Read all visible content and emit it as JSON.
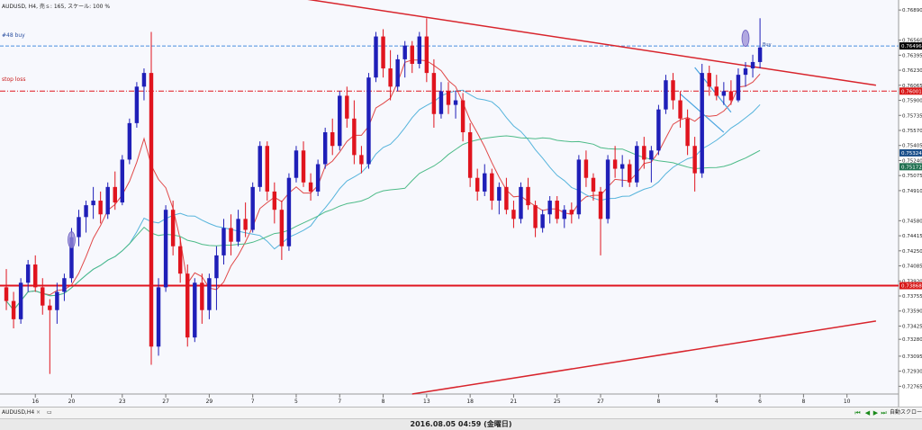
{
  "window": {
    "title": "AUDUSD, H4,  売ｓ: 165, スケール: 100 %",
    "status": "2016.08.05 04:59 (金曜日)",
    "tab_label": "AUDUSD,H4",
    "tab_close": "×",
    "right_tab": "自動スクロール"
  },
  "price_labels": {
    "buy_order": "#48 buy",
    "stop_loss": "stop loss",
    "buy_arrow": "Buy"
  },
  "colors": {
    "background": "#f7f8fd",
    "bull_candle": "#1f1fb8",
    "bear_candle": "#e0141e",
    "trendline": "#d8242c",
    "buy_line": "#4a8fe0",
    "stop_line": "#e0141e",
    "ma_fast": "#e04848",
    "ma_medium": "#56b4dc",
    "ma_slow": "#4dbb88",
    "flag_line": "#4aa4e0",
    "marker_fill": "#9a8ed6"
  },
  "chart_data": {
    "type": "candlestick",
    "symbol": "AUDUSD",
    "timeframe": "H4",
    "y_axis": {
      "ylim": [
        0.7268,
        0.77
      ],
      "ticks": [
        "0.76890",
        "0.76560",
        "0.76395",
        "0.76230",
        "0.76065",
        "0.75900",
        "0.75735",
        "0.75570",
        "0.75405",
        "0.75240",
        "0.75075",
        "0.74910",
        "0.74580",
        "0.74415",
        "0.74250",
        "0.74085",
        "0.73920",
        "0.73755",
        "0.73590",
        "0.73425",
        "0.73280",
        "0.73095",
        "0.72930",
        "0.72765"
      ],
      "tick_values": [
        0.7689,
        0.7656,
        0.76395,
        0.7623,
        0.76065,
        0.759,
        0.75735,
        0.7557,
        0.75405,
        0.7524,
        0.75075,
        0.7491,
        0.7458,
        0.74415,
        0.7425,
        0.74085,
        0.7392,
        0.73755,
        0.7359,
        0.73425,
        0.7328,
        0.73095,
        0.7293,
        0.72765
      ],
      "highlight_labels": [
        {
          "text": "0.76496",
          "value": 0.76496,
          "color": "#000000"
        },
        {
          "text": "0.76001",
          "value": 0.76001,
          "color": "#d81818"
        },
        {
          "text": "0.73868",
          "value": 0.73868,
          "color": "#d81818"
        },
        {
          "text": "0.75324",
          "value": 0.75324,
          "color": "#1a4f8a"
        },
        {
          "text": "0.75172",
          "value": 0.75172,
          "color": "#207050"
        }
      ]
    },
    "x_axis": {
      "labels": [
        "16",
        "20",
        "23",
        "27",
        "29",
        "7",
        "5",
        "7",
        "8",
        "13",
        "18",
        "21",
        "25",
        "27",
        "8",
        "4",
        "6",
        "8",
        "10"
      ],
      "label_bars": [
        4,
        9,
        16,
        22,
        28,
        34,
        40,
        46,
        52,
        58,
        64,
        70,
        76,
        82,
        90,
        98,
        104,
        110,
        116
      ]
    },
    "horizontal_lines": [
      {
        "name": "buy_order",
        "value": 0.76496,
        "style": "dashed",
        "color": "#4a8fe0"
      },
      {
        "name": "stop_loss",
        "value": 0.76001,
        "style": "dashdot",
        "color": "#e0141e"
      },
      {
        "name": "support",
        "value": 0.73868,
        "style": "solid",
        "color": "#e0141e"
      }
    ],
    "trendlines": [
      {
        "from": {
          "bar": 38,
          "price": 0.7705
        },
        "to": {
          "bar": 120,
          "price": 0.76065
        }
      },
      {
        "from": {
          "bar": 56,
          "price": 0.7268
        },
        "to": {
          "bar": 120,
          "price": 0.7348
        }
      }
    ],
    "flag_lines": [
      {
        "from": {
          "bar": 95,
          "price": 0.7626
        },
        "to": {
          "bar": 100,
          "price": 0.7577
        }
      },
      {
        "from": {
          "bar": 93,
          "price": 0.7597
        },
        "to": {
          "bar": 99,
          "price": 0.7555
        }
      }
    ],
    "markers": [
      {
        "name": "entry-marker-left",
        "bar": 9,
        "price": 0.7437
      },
      {
        "name": "entry-marker-right",
        "bar": 102,
        "price": 0.7658
      }
    ],
    "candles": [
      {
        "o": 0.7385,
        "h": 0.7405,
        "l": 0.736,
        "c": 0.737
      },
      {
        "o": 0.737,
        "h": 0.738,
        "l": 0.734,
        "c": 0.735
      },
      {
        "o": 0.735,
        "h": 0.7395,
        "l": 0.7345,
        "c": 0.739
      },
      {
        "o": 0.739,
        "h": 0.7415,
        "l": 0.738,
        "c": 0.741
      },
      {
        "o": 0.741,
        "h": 0.742,
        "l": 0.738,
        "c": 0.7385
      },
      {
        "o": 0.7385,
        "h": 0.7395,
        "l": 0.7355,
        "c": 0.7365
      },
      {
        "o": 0.7365,
        "h": 0.7372,
        "l": 0.729,
        "c": 0.736
      },
      {
        "o": 0.736,
        "h": 0.739,
        "l": 0.7345,
        "c": 0.738
      },
      {
        "o": 0.738,
        "h": 0.74,
        "l": 0.737,
        "c": 0.7395
      },
      {
        "o": 0.7395,
        "h": 0.745,
        "l": 0.739,
        "c": 0.744
      },
      {
        "o": 0.744,
        "h": 0.747,
        "l": 0.743,
        "c": 0.7462
      },
      {
        "o": 0.7462,
        "h": 0.748,
        "l": 0.7445,
        "c": 0.7475
      },
      {
        "o": 0.7475,
        "h": 0.7495,
        "l": 0.746,
        "c": 0.748
      },
      {
        "o": 0.748,
        "h": 0.749,
        "l": 0.7455,
        "c": 0.7465
      },
      {
        "o": 0.7465,
        "h": 0.75,
        "l": 0.746,
        "c": 0.7495
      },
      {
        "o": 0.7495,
        "h": 0.7512,
        "l": 0.747,
        "c": 0.7478
      },
      {
        "o": 0.7478,
        "h": 0.753,
        "l": 0.7475,
        "c": 0.7525
      },
      {
        "o": 0.7525,
        "h": 0.757,
        "l": 0.752,
        "c": 0.7565
      },
      {
        "o": 0.7565,
        "h": 0.761,
        "l": 0.756,
        "c": 0.7605
      },
      {
        "o": 0.7605,
        "h": 0.7625,
        "l": 0.759,
        "c": 0.762
      },
      {
        "o": 0.762,
        "h": 0.7665,
        "l": 0.73,
        "c": 0.732
      },
      {
        "o": 0.732,
        "h": 0.7395,
        "l": 0.731,
        "c": 0.7385
      },
      {
        "o": 0.7385,
        "h": 0.7475,
        "l": 0.738,
        "c": 0.747
      },
      {
        "o": 0.747,
        "h": 0.748,
        "l": 0.742,
        "c": 0.743
      },
      {
        "o": 0.743,
        "h": 0.744,
        "l": 0.739,
        "c": 0.74
      },
      {
        "o": 0.74,
        "h": 0.741,
        "l": 0.732,
        "c": 0.733
      },
      {
        "o": 0.733,
        "h": 0.7395,
        "l": 0.7325,
        "c": 0.739
      },
      {
        "o": 0.739,
        "h": 0.74,
        "l": 0.7345,
        "c": 0.736
      },
      {
        "o": 0.736,
        "h": 0.74,
        "l": 0.735,
        "c": 0.7395
      },
      {
        "o": 0.7395,
        "h": 0.743,
        "l": 0.736,
        "c": 0.742
      },
      {
        "o": 0.742,
        "h": 0.746,
        "l": 0.741,
        "c": 0.745
      },
      {
        "o": 0.745,
        "h": 0.7465,
        "l": 0.742,
        "c": 0.7435
      },
      {
        "o": 0.7435,
        "h": 0.747,
        "l": 0.743,
        "c": 0.746
      },
      {
        "o": 0.746,
        "h": 0.7478,
        "l": 0.744,
        "c": 0.7448
      },
      {
        "o": 0.7448,
        "h": 0.75,
        "l": 0.7445,
        "c": 0.7495
      },
      {
        "o": 0.7495,
        "h": 0.7545,
        "l": 0.749,
        "c": 0.754
      },
      {
        "o": 0.754,
        "h": 0.7545,
        "l": 0.748,
        "c": 0.749
      },
      {
        "o": 0.749,
        "h": 0.75,
        "l": 0.7455,
        "c": 0.747
      },
      {
        "o": 0.747,
        "h": 0.748,
        "l": 0.7415,
        "c": 0.743
      },
      {
        "o": 0.743,
        "h": 0.751,
        "l": 0.7425,
        "c": 0.7505
      },
      {
        "o": 0.7505,
        "h": 0.754,
        "l": 0.75,
        "c": 0.7535
      },
      {
        "o": 0.7535,
        "h": 0.7545,
        "l": 0.7495,
        "c": 0.75
      },
      {
        "o": 0.75,
        "h": 0.751,
        "l": 0.748,
        "c": 0.749
      },
      {
        "o": 0.749,
        "h": 0.7525,
        "l": 0.7485,
        "c": 0.752
      },
      {
        "o": 0.752,
        "h": 0.756,
        "l": 0.7515,
        "c": 0.7555
      },
      {
        "o": 0.7555,
        "h": 0.757,
        "l": 0.753,
        "c": 0.754
      },
      {
        "o": 0.754,
        "h": 0.76,
        "l": 0.7535,
        "c": 0.7595
      },
      {
        "o": 0.7595,
        "h": 0.7605,
        "l": 0.756,
        "c": 0.757
      },
      {
        "o": 0.757,
        "h": 0.759,
        "l": 0.752,
        "c": 0.753
      },
      {
        "o": 0.753,
        "h": 0.754,
        "l": 0.751,
        "c": 0.752
      },
      {
        "o": 0.752,
        "h": 0.762,
        "l": 0.7515,
        "c": 0.7615
      },
      {
        "o": 0.7615,
        "h": 0.7665,
        "l": 0.761,
        "c": 0.766
      },
      {
        "o": 0.766,
        "h": 0.7668,
        "l": 0.7615,
        "c": 0.7625
      },
      {
        "o": 0.7625,
        "h": 0.7645,
        "l": 0.759,
        "c": 0.7605
      },
      {
        "o": 0.7605,
        "h": 0.764,
        "l": 0.76,
        "c": 0.7635
      },
      {
        "o": 0.7635,
        "h": 0.7655,
        "l": 0.7615,
        "c": 0.765
      },
      {
        "o": 0.765,
        "h": 0.7655,
        "l": 0.762,
        "c": 0.763
      },
      {
        "o": 0.763,
        "h": 0.7665,
        "l": 0.7625,
        "c": 0.766
      },
      {
        "o": 0.766,
        "h": 0.768,
        "l": 0.761,
        "c": 0.762
      },
      {
        "o": 0.762,
        "h": 0.7635,
        "l": 0.756,
        "c": 0.7575
      },
      {
        "o": 0.7575,
        "h": 0.761,
        "l": 0.757,
        "c": 0.76
      },
      {
        "o": 0.76,
        "h": 0.761,
        "l": 0.7575,
        "c": 0.7585
      },
      {
        "o": 0.7585,
        "h": 0.76,
        "l": 0.757,
        "c": 0.759
      },
      {
        "o": 0.759,
        "h": 0.7598,
        "l": 0.7545,
        "c": 0.7555
      },
      {
        "o": 0.7555,
        "h": 0.7565,
        "l": 0.7495,
        "c": 0.7505
      },
      {
        "o": 0.7505,
        "h": 0.7515,
        "l": 0.748,
        "c": 0.749
      },
      {
        "o": 0.749,
        "h": 0.752,
        "l": 0.7485,
        "c": 0.751
      },
      {
        "o": 0.751,
        "h": 0.7515,
        "l": 0.747,
        "c": 0.748
      },
      {
        "o": 0.748,
        "h": 0.75,
        "l": 0.7465,
        "c": 0.7495
      },
      {
        "o": 0.7495,
        "h": 0.7505,
        "l": 0.7465,
        "c": 0.747
      },
      {
        "o": 0.747,
        "h": 0.748,
        "l": 0.745,
        "c": 0.746
      },
      {
        "o": 0.746,
        "h": 0.75,
        "l": 0.7455,
        "c": 0.7495
      },
      {
        "o": 0.7495,
        "h": 0.7505,
        "l": 0.747,
        "c": 0.7475
      },
      {
        "o": 0.7475,
        "h": 0.748,
        "l": 0.744,
        "c": 0.745
      },
      {
        "o": 0.745,
        "h": 0.747,
        "l": 0.7445,
        "c": 0.7465
      },
      {
        "o": 0.7465,
        "h": 0.7485,
        "l": 0.7455,
        "c": 0.748
      },
      {
        "o": 0.748,
        "h": 0.7485,
        "l": 0.7455,
        "c": 0.746
      },
      {
        "o": 0.746,
        "h": 0.7475,
        "l": 0.745,
        "c": 0.747
      },
      {
        "o": 0.747,
        "h": 0.7478,
        "l": 0.7455,
        "c": 0.7465
      },
      {
        "o": 0.7465,
        "h": 0.753,
        "l": 0.746,
        "c": 0.7525
      },
      {
        "o": 0.7525,
        "h": 0.7535,
        "l": 0.7495,
        "c": 0.7505
      },
      {
        "o": 0.7505,
        "h": 0.751,
        "l": 0.748,
        "c": 0.749
      },
      {
        "o": 0.749,
        "h": 0.7495,
        "l": 0.742,
        "c": 0.746
      },
      {
        "o": 0.746,
        "h": 0.753,
        "l": 0.7455,
        "c": 0.7525
      },
      {
        "o": 0.7525,
        "h": 0.754,
        "l": 0.7505,
        "c": 0.7515
      },
      {
        "o": 0.7515,
        "h": 0.753,
        "l": 0.7495,
        "c": 0.752
      },
      {
        "o": 0.752,
        "h": 0.7525,
        "l": 0.7495,
        "c": 0.75
      },
      {
        "o": 0.75,
        "h": 0.7545,
        "l": 0.7495,
        "c": 0.754
      },
      {
        "o": 0.754,
        "h": 0.755,
        "l": 0.7515,
        "c": 0.7525
      },
      {
        "o": 0.7525,
        "h": 0.754,
        "l": 0.75,
        "c": 0.7535
      },
      {
        "o": 0.7535,
        "h": 0.7585,
        "l": 0.753,
        "c": 0.758
      },
      {
        "o": 0.758,
        "h": 0.7618,
        "l": 0.7575,
        "c": 0.7612
      },
      {
        "o": 0.7612,
        "h": 0.762,
        "l": 0.758,
        "c": 0.759
      },
      {
        "o": 0.759,
        "h": 0.76,
        "l": 0.756,
        "c": 0.757
      },
      {
        "o": 0.757,
        "h": 0.758,
        "l": 0.753,
        "c": 0.754
      },
      {
        "o": 0.754,
        "h": 0.755,
        "l": 0.749,
        "c": 0.751
      },
      {
        "o": 0.751,
        "h": 0.763,
        "l": 0.7505,
        "c": 0.762
      },
      {
        "o": 0.762,
        "h": 0.7628,
        "l": 0.7595,
        "c": 0.7605
      },
      {
        "o": 0.7605,
        "h": 0.7618,
        "l": 0.759,
        "c": 0.7595
      },
      {
        "o": 0.7595,
        "h": 0.761,
        "l": 0.7585,
        "c": 0.76
      },
      {
        "o": 0.76,
        "h": 0.7612,
        "l": 0.7585,
        "c": 0.759
      },
      {
        "o": 0.759,
        "h": 0.7625,
        "l": 0.7588,
        "c": 0.7618
      },
      {
        "o": 0.7618,
        "h": 0.7632,
        "l": 0.7605,
        "c": 0.7625
      },
      {
        "o": 0.7625,
        "h": 0.764,
        "l": 0.7615,
        "c": 0.7632
      },
      {
        "o": 0.7632,
        "h": 0.768,
        "l": 0.7625,
        "c": 0.7648
      }
    ]
  }
}
